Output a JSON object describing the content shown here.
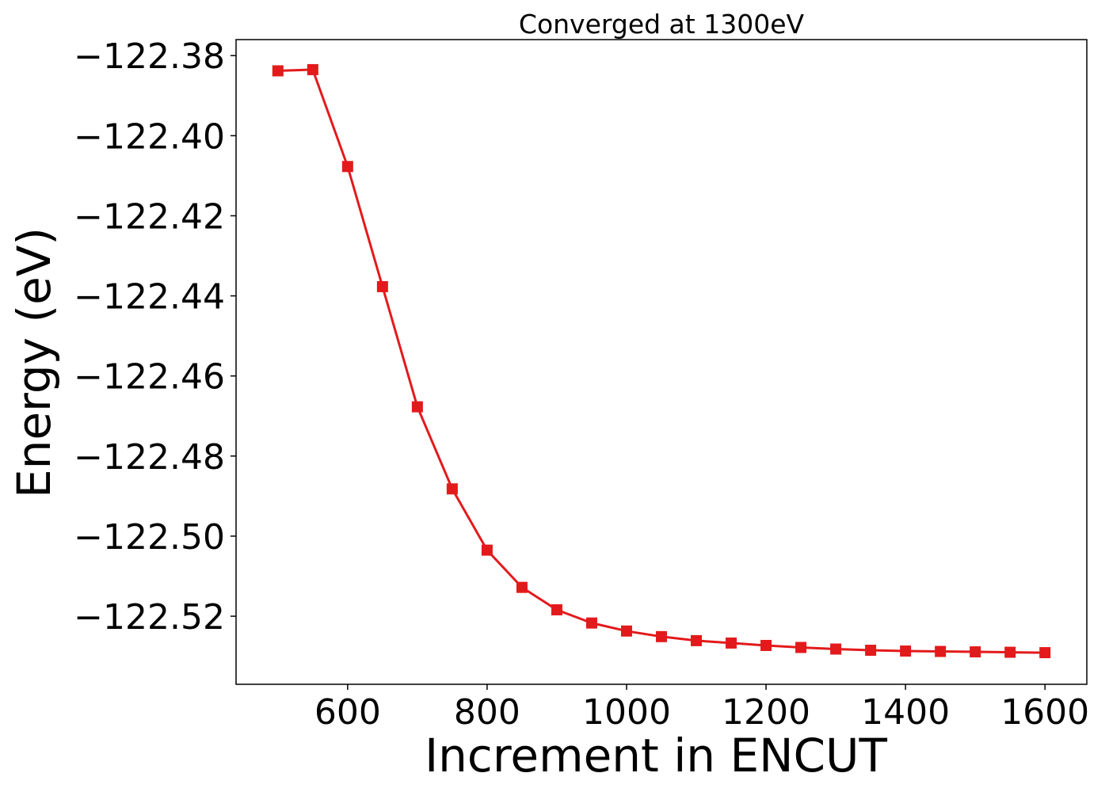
{
  "chart_data": {
    "type": "line",
    "title": "Converged at 1300eV",
    "xlabel": "Increment in ENCUT",
    "ylabel": "Energy (eV)",
    "xlim": [
      440,
      1660
    ],
    "ylim": [
      -122.537,
      -122.376
    ],
    "x_ticks": [
      600,
      800,
      1000,
      1200,
      1400,
      1600
    ],
    "x_tick_labels": [
      "600",
      "800",
      "1000",
      "1200",
      "1400",
      "1600"
    ],
    "y_ticks": [
      -122.38,
      -122.4,
      -122.42,
      -122.44,
      -122.46,
      -122.48,
      -122.5,
      -122.52
    ],
    "y_tick_labels": [
      "−122.38",
      "−122.40",
      "−122.42",
      "−122.44",
      "−122.46",
      "−122.48",
      "−122.50",
      "−122.52"
    ],
    "grid": false,
    "marker": "square",
    "color": "#e31a1c",
    "series": [
      {
        "x": [
          500,
          550,
          600,
          650,
          700,
          750,
          800,
          850,
          900,
          950,
          1000,
          1050,
          1100,
          1150,
          1200,
          1250,
          1300,
          1350,
          1400,
          1450,
          1500,
          1550,
          1600
        ],
        "y": [
          -122.3838,
          -122.3835,
          -122.4077,
          -122.4377,
          -122.4677,
          -122.4882,
          -122.5035,
          -122.5128,
          -122.5184,
          -122.5217,
          -122.5237,
          -122.5251,
          -122.5261,
          -122.5267,
          -122.5273,
          -122.5278,
          -122.5282,
          -122.5285,
          -122.5287,
          -122.5288,
          -122.5289,
          -122.529,
          -122.5291
        ]
      }
    ]
  }
}
